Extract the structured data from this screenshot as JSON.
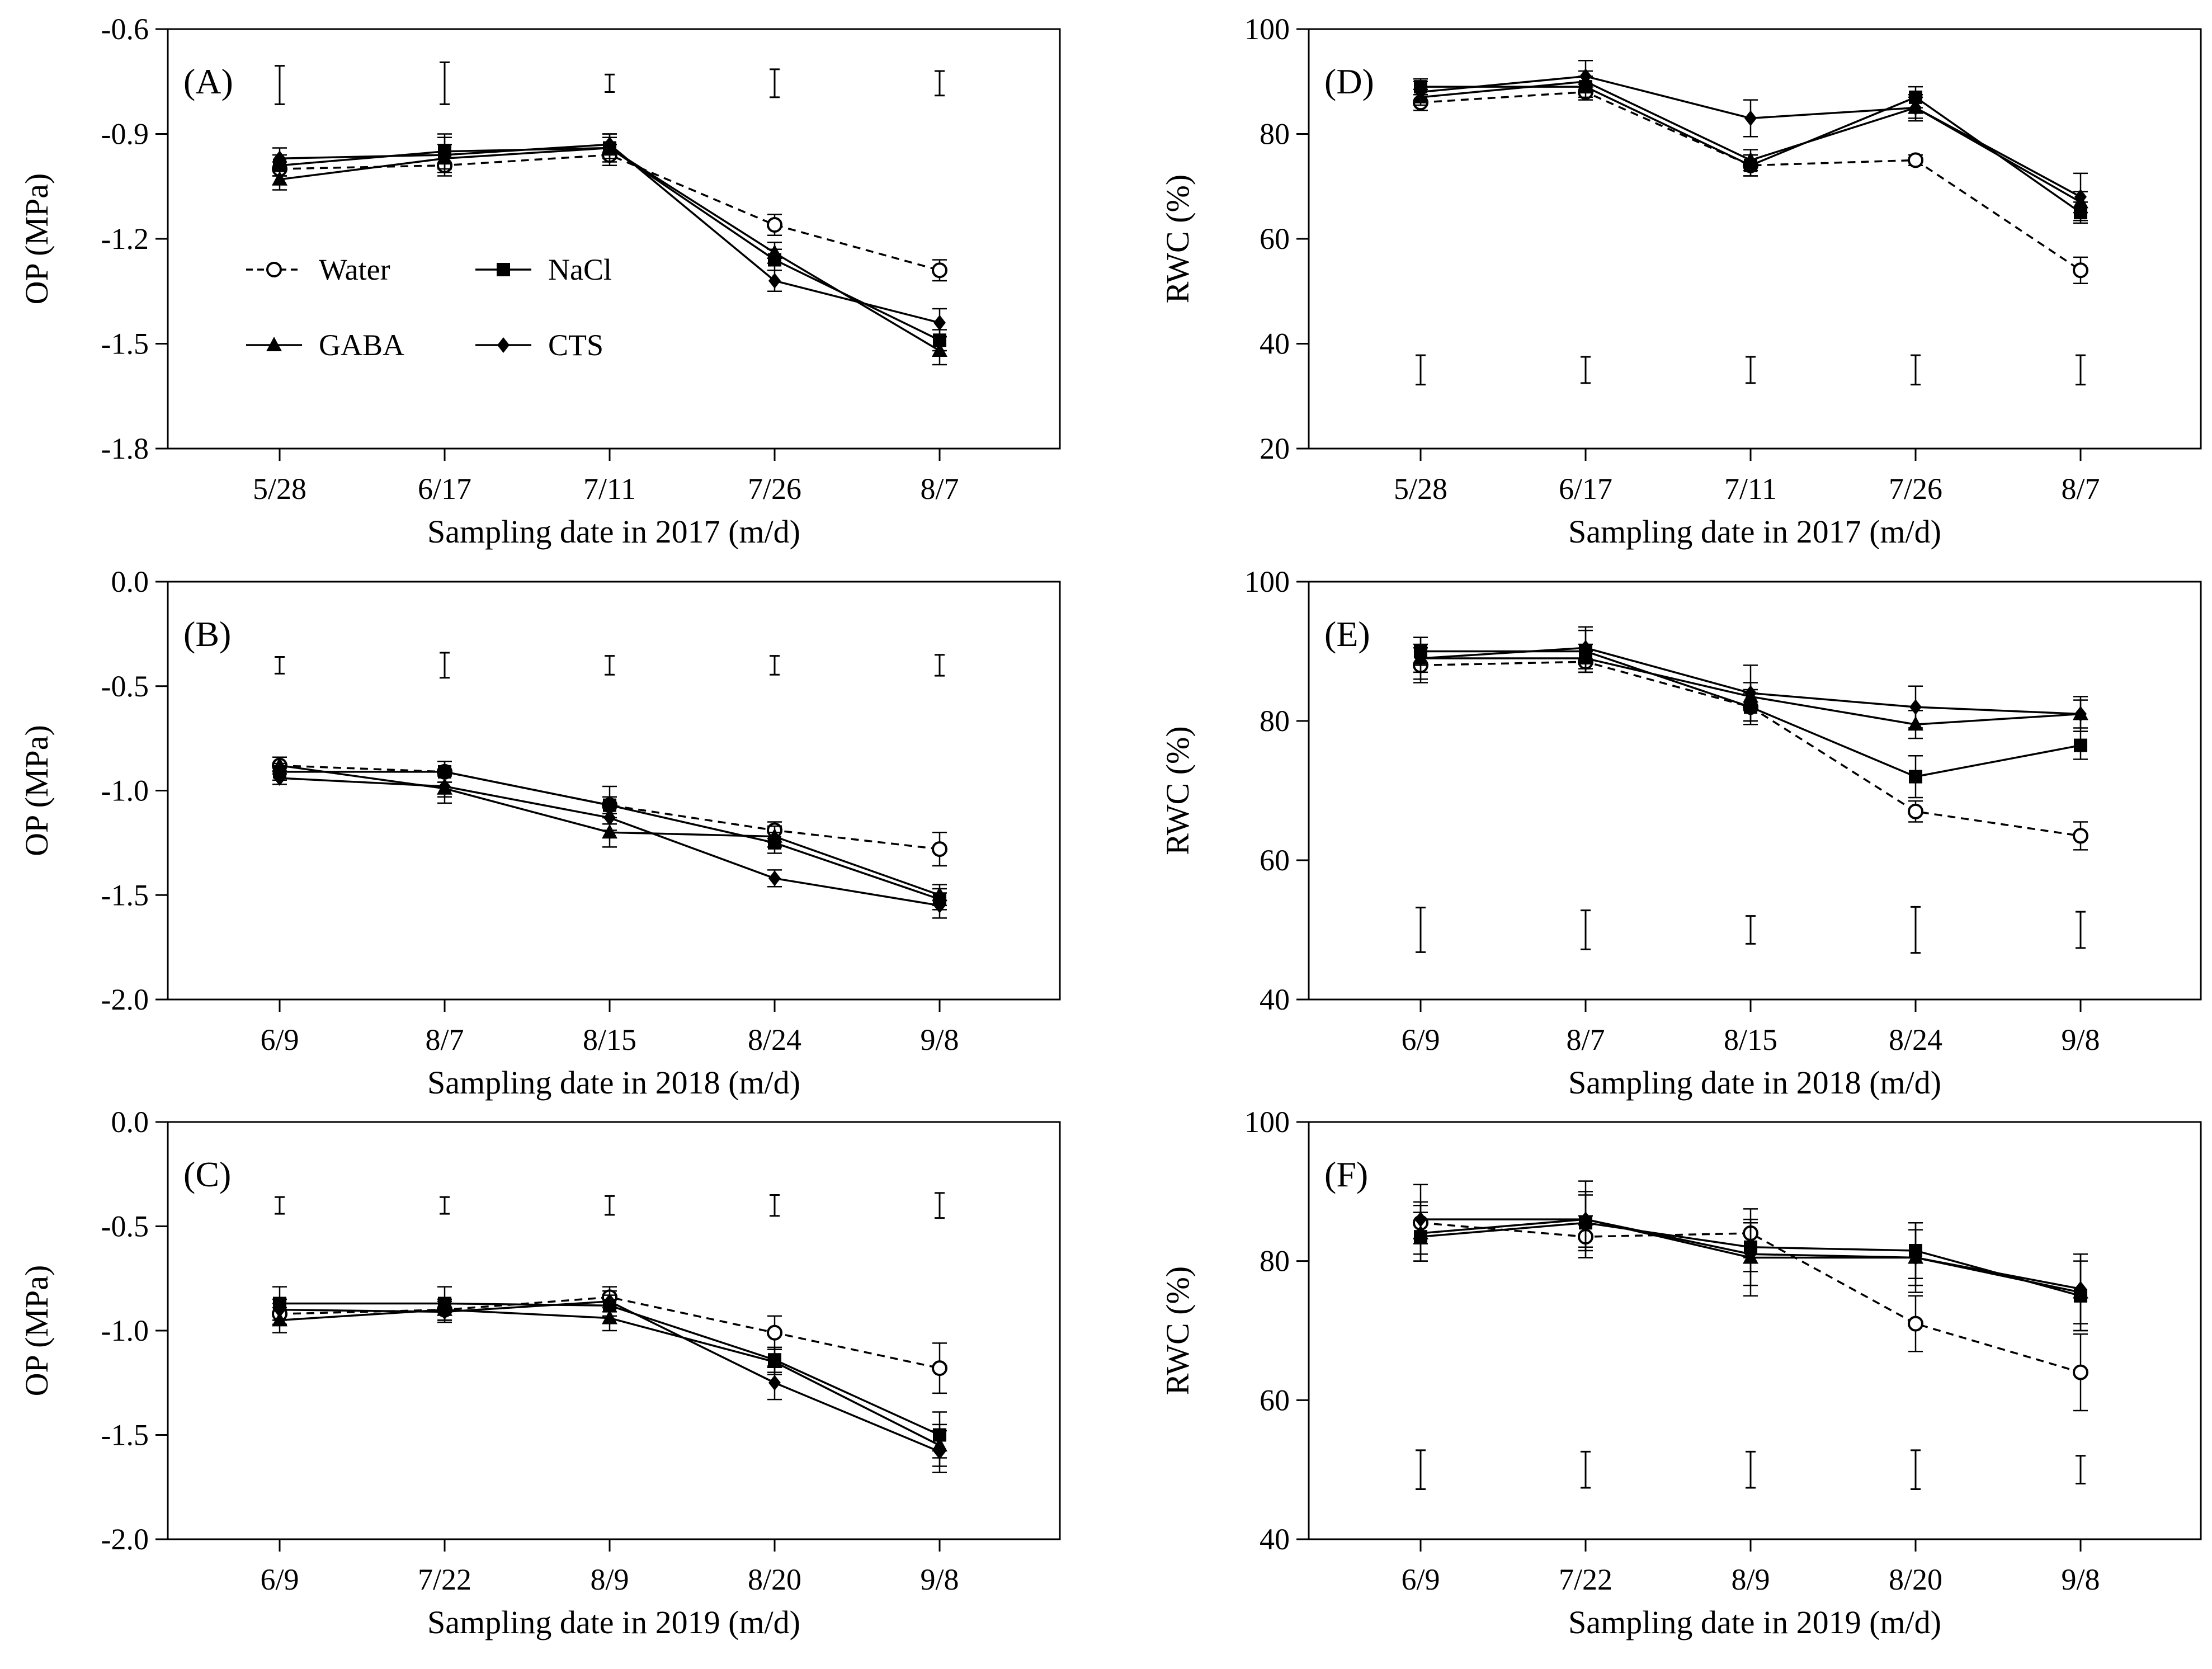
{
  "figure": {
    "series_styles": {
      "Water": {
        "marker": "open-circle",
        "line": "dashed",
        "color": "#000000"
      },
      "NaCl": {
        "marker": "filled-square",
        "line": "solid",
        "color": "#000000"
      },
      "GABA": {
        "marker": "filled-triangle",
        "line": "solid",
        "color": "#000000"
      },
      "CTS": {
        "marker": "filled-diamond",
        "line": "solid",
        "color": "#000000"
      }
    }
  },
  "chart_data": [
    {
      "type": "line",
      "panel": "(A)",
      "xlabel": "Sampling date in 2017 (m/d)",
      "ylabel": "OP (MPa)",
      "ylim": [
        -1.8,
        -0.6
      ],
      "yticks": [
        -0.6,
        -0.9,
        -1.2,
        -1.5,
        -1.8
      ],
      "ytick_labels": [
        "-0.6",
        "-0.9",
        "-1.2",
        "-1.5",
        "-1.8"
      ],
      "categories": [
        "5/28",
        "6/17",
        "7/11",
        "7/26",
        "8/7"
      ],
      "legend": {
        "position": "center-left",
        "entries": [
          "Water",
          "NaCl",
          "GABA",
          "CTS"
        ]
      },
      "series": [
        {
          "name": "Water",
          "values": [
            -1.0,
            -0.99,
            -0.96,
            -1.16,
            -1.29
          ],
          "errors": [
            0.02,
            0.03,
            0.03,
            0.03,
            0.03
          ]
        },
        {
          "name": "NaCl",
          "values": [
            -0.99,
            -0.95,
            -0.94,
            -1.26,
            -1.49
          ],
          "errors": [
            0.03,
            0.05,
            0.03,
            0.03,
            0.03
          ]
        },
        {
          "name": "GABA",
          "values": [
            -1.03,
            -0.97,
            -0.94,
            -1.24,
            -1.52
          ],
          "errors": [
            0.03,
            0.04,
            0.04,
            0.03,
            0.04
          ]
        },
        {
          "name": "CTS",
          "values": [
            -0.97,
            -0.96,
            -0.93,
            -1.32,
            -1.44
          ],
          "errors": [
            0.03,
            0.05,
            0.03,
            0.03,
            0.04
          ]
        }
      ],
      "lsd_bars": [
        {
          "center": -0.76,
          "half": 0.055
        },
        {
          "center": -0.755,
          "half": 0.06
        },
        {
          "center": -0.755,
          "half": 0.025
        },
        {
          "center": -0.755,
          "half": 0.04
        },
        {
          "center": -0.755,
          "half": 0.035
        }
      ]
    },
    {
      "type": "line",
      "panel": "(B)",
      "xlabel": "Sampling date in 2018 (m/d)",
      "ylabel": "OP (MPa)",
      "ylim": [
        -2.0,
        0.0
      ],
      "yticks": [
        0.0,
        -0.5,
        -1.0,
        -1.5,
        -2.0
      ],
      "ytick_labels": [
        "0.0",
        "-0.5",
        "-1.0",
        "-1.5",
        "-2.0"
      ],
      "categories": [
        "6/9",
        "8/7",
        "8/15",
        "8/24",
        "9/8"
      ],
      "series": [
        {
          "name": "Water",
          "values": [
            -0.88,
            -0.91,
            -1.07,
            -1.19,
            -1.28
          ],
          "errors": [
            0.04,
            0.05,
            0.04,
            0.04,
            0.08
          ]
        },
        {
          "name": "NaCl",
          "values": [
            -0.91,
            -0.91,
            -1.07,
            -1.25,
            -1.52
          ],
          "errors": [
            0.04,
            0.05,
            0.09,
            0.05,
            0.05
          ]
        },
        {
          "name": "GABA",
          "values": [
            -0.88,
            -0.99,
            -1.2,
            -1.22,
            -1.5
          ],
          "errors": [
            0.04,
            0.07,
            0.07,
            0.05,
            0.05
          ]
        },
        {
          "name": "CTS",
          "values": [
            -0.94,
            -0.98,
            -1.13,
            -1.42,
            -1.55
          ],
          "errors": [
            0.03,
            0.05,
            0.06,
            0.04,
            0.06
          ]
        }
      ],
      "lsd_bars": [
        {
          "center": -0.4,
          "half": 0.04
        },
        {
          "center": -0.4,
          "half": 0.06
        },
        {
          "center": -0.4,
          "half": 0.045
        },
        {
          "center": -0.4,
          "half": 0.045
        },
        {
          "center": -0.4,
          "half": 0.05
        }
      ]
    },
    {
      "type": "line",
      "panel": "(C)",
      "xlabel": "Sampling date in 2019 (m/d)",
      "ylabel": "OP (MPa)",
      "ylim": [
        -2.0,
        0.0
      ],
      "yticks": [
        0.0,
        -0.5,
        -1.0,
        -1.5,
        -2.0
      ],
      "ytick_labels": [
        "0.0",
        "-0.5",
        "-1.0",
        "-1.5",
        "-2.0"
      ],
      "categories": [
        "6/9",
        "7/22",
        "8/9",
        "8/20",
        "9/8"
      ],
      "series": [
        {
          "name": "Water",
          "values": [
            -0.92,
            -0.9,
            -0.84,
            -1.01,
            -1.18
          ],
          "errors": [
            0.05,
            0.05,
            0.05,
            0.08,
            0.12
          ]
        },
        {
          "name": "NaCl",
          "values": [
            -0.87,
            -0.87,
            -0.88,
            -1.14,
            -1.5
          ],
          "errors": [
            0.08,
            0.08,
            0.05,
            0.06,
            0.11
          ]
        },
        {
          "name": "GABA",
          "values": [
            -0.95,
            -0.9,
            -0.94,
            -1.15,
            -1.55
          ],
          "errors": [
            0.06,
            0.05,
            0.06,
            0.06,
            0.1
          ]
        },
        {
          "name": "CTS",
          "values": [
            -0.9,
            -0.91,
            -0.86,
            -1.25,
            -1.58
          ],
          "errors": [
            0.05,
            0.05,
            0.05,
            0.08,
            0.1
          ]
        }
      ],
      "lsd_bars": [
        {
          "center": -0.4,
          "half": 0.04
        },
        {
          "center": -0.4,
          "half": 0.04
        },
        {
          "center": -0.4,
          "half": 0.045
        },
        {
          "center": -0.4,
          "half": 0.05
        },
        {
          "center": -0.4,
          "half": 0.06
        }
      ]
    },
    {
      "type": "line",
      "panel": "(D)",
      "xlabel": "Sampling date in 2017 (m/d)",
      "ylabel": "RWC (%)",
      "ylim": [
        20,
        100
      ],
      "yticks": [
        100,
        80,
        60,
        40,
        20
      ],
      "ytick_labels": [
        "100",
        "80",
        "60",
        "40",
        "20"
      ],
      "categories": [
        "5/28",
        "6/17",
        "7/11",
        "7/26",
        "8/7"
      ],
      "series": [
        {
          "name": "Water",
          "values": [
            86,
            88,
            74,
            75,
            54
          ],
          "errors": [
            1.5,
            1.5,
            2,
            1,
            2.5
          ]
        },
        {
          "name": "NaCl",
          "values": [
            89,
            89,
            74,
            87,
            65
          ],
          "errors": [
            1.5,
            2,
            2,
            2,
            2
          ]
        },
        {
          "name": "GABA",
          "values": [
            87,
            90,
            75,
            85,
            67
          ],
          "errors": [
            1.5,
            2,
            2,
            2,
            2
          ]
        },
        {
          "name": "CTS",
          "values": [
            88,
            91,
            83,
            85,
            68
          ],
          "errors": [
            2,
            3,
            3.5,
            2.5,
            4.5
          ]
        }
      ],
      "lsd_bars": [
        {
          "center": 35,
          "half": 2.8
        },
        {
          "center": 35,
          "half": 2.5
        },
        {
          "center": 35,
          "half": 2.5
        },
        {
          "center": 35,
          "half": 2.8
        },
        {
          "center": 35,
          "half": 2.8
        }
      ]
    },
    {
      "type": "line",
      "panel": "(E)",
      "xlabel": "Sampling date in 2018 (m/d)",
      "ylabel": "RWC (%)",
      "ylim": [
        40,
        100
      ],
      "yticks": [
        100,
        80,
        60,
        40
      ],
      "ytick_labels": [
        "100",
        "80",
        "60",
        "40"
      ],
      "categories": [
        "6/9",
        "8/7",
        "8/15",
        "8/24",
        "9/8"
      ],
      "series": [
        {
          "name": "Water",
          "values": [
            88,
            88.5,
            82,
            67,
            63.5
          ],
          "errors": [
            2.5,
            1.5,
            2.5,
            1.5,
            2
          ]
        },
        {
          "name": "NaCl",
          "values": [
            90,
            90,
            82,
            72,
            76.5
          ],
          "errors": [
            2,
            3,
            2,
            3,
            2
          ]
        },
        {
          "name": "GABA",
          "values": [
            89,
            89,
            83.5,
            79.5,
            81
          ],
          "errors": [
            2,
            2,
            2,
            2,
            2
          ]
        },
        {
          "name": "CTS",
          "values": [
            89,
            90.5,
            84,
            82,
            81
          ],
          "errors": [
            3,
            3,
            4,
            3,
            2.5
          ]
        }
      ],
      "lsd_bars": [
        {
          "center": 50,
          "half": 3.2
        },
        {
          "center": 50,
          "half": 2.8
        },
        {
          "center": 50,
          "half": 2
        },
        {
          "center": 50,
          "half": 3.3
        },
        {
          "center": 50,
          "half": 2.6
        }
      ]
    },
    {
      "type": "line",
      "panel": "(F)",
      "xlabel": "Sampling date in 2019 (m/d)",
      "ylabel": "RWC (%)",
      "ylim": [
        40,
        100
      ],
      "yticks": [
        100,
        80,
        60,
        40
      ],
      "ytick_labels": [
        "100",
        "80",
        "60",
        "40"
      ],
      "categories": [
        "6/9",
        "7/22",
        "8/9",
        "8/20",
        "9/8"
      ],
      "series": [
        {
          "name": "Water",
          "values": [
            85.5,
            83.5,
            84,
            71,
            64
          ],
          "errors": [
            3,
            3,
            3.5,
            4,
            5.5
          ]
        },
        {
          "name": "NaCl",
          "values": [
            83.5,
            85.5,
            82,
            81.5,
            75
          ],
          "errors": [
            3.5,
            4,
            3.5,
            4,
            5
          ]
        },
        {
          "name": "GABA",
          "values": [
            84,
            86,
            80.5,
            80.5,
            75.5
          ],
          "errors": [
            4,
            4,
            5.5,
            4,
            5.5
          ]
        },
        {
          "name": "CTS",
          "values": [
            86,
            86,
            81,
            80.5,
            76
          ],
          "errors": [
            5,
            5.5,
            4.5,
            5,
            5
          ]
        }
      ],
      "lsd_bars": [
        {
          "center": 50,
          "half": 2.8
        },
        {
          "center": 50,
          "half": 2.6
        },
        {
          "center": 50,
          "half": 2.6
        },
        {
          "center": 50,
          "half": 2.8
        },
        {
          "center": 50,
          "half": 2
        }
      ]
    }
  ]
}
